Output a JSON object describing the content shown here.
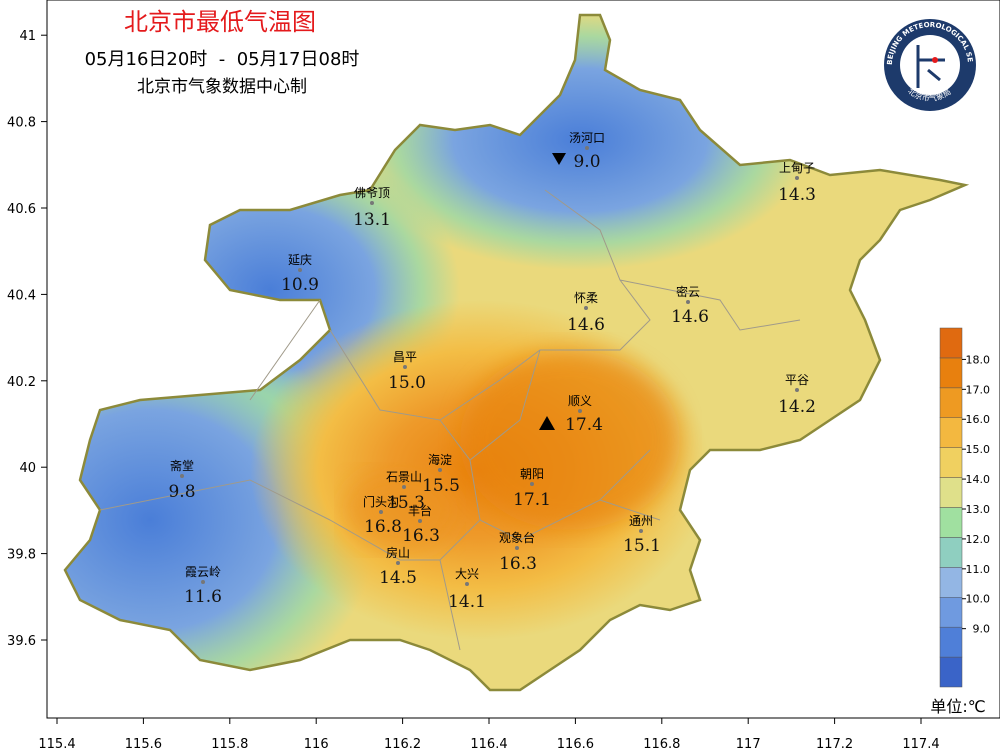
{
  "title": "北京市最低气温图",
  "time": "05月16日20时  -  05月17日08时",
  "source": "北京市气象数据中心制",
  "logo": {
    "top": "BEIJING METEOROLOGICAL SERVICE",
    "bottom": "北京市气象局"
  },
  "axes": {
    "xticks": [
      "115.4",
      "115.6",
      "115.8",
      "116",
      "116.2",
      "116.4",
      "116.6",
      "116.8",
      "117",
      "117.2",
      "117.4"
    ],
    "yticks": [
      "39.6",
      "39.8",
      "40",
      "40.2",
      "40.4",
      "40.6",
      "40.8",
      "41"
    ]
  },
  "stations": [
    {
      "name": "汤河口",
      "value": "9.0"
    },
    {
      "name": "上甸子",
      "value": "14.3"
    },
    {
      "name": "佛爷顶",
      "value": "13.1"
    },
    {
      "name": "延庆",
      "value": "10.9"
    },
    {
      "name": "怀柔",
      "value": "14.6"
    },
    {
      "name": "密云",
      "value": "14.6"
    },
    {
      "name": "昌平",
      "value": "15.0"
    },
    {
      "name": "平谷",
      "value": "14.2"
    },
    {
      "name": "顺义",
      "value": "17.4"
    },
    {
      "name": "海淀",
      "value": "15.5"
    },
    {
      "name": "石景山",
      "value": "15.3"
    },
    {
      "name": "朝阳",
      "value": "17.1"
    },
    {
      "name": "门头沟",
      "value": "16.8"
    },
    {
      "name": "丰台",
      "value": "16.3"
    },
    {
      "name": "通州",
      "value": "15.1"
    },
    {
      "name": "观象台",
      "value": "16.3"
    },
    {
      "name": "房山",
      "value": "14.5"
    },
    {
      "name": "大兴",
      "value": "14.1"
    },
    {
      "name": "霞云岭",
      "value": "11.6"
    },
    {
      "name": "斋堂",
      "value": "9.8"
    }
  ],
  "legend": {
    "ticks": [
      "9.0",
      "10.0",
      "11.0",
      "12.0",
      "13.0",
      "14.0",
      "15.0",
      "16.0",
      "17.0",
      "18.0"
    ],
    "unit": "单位:℃"
  }
}
